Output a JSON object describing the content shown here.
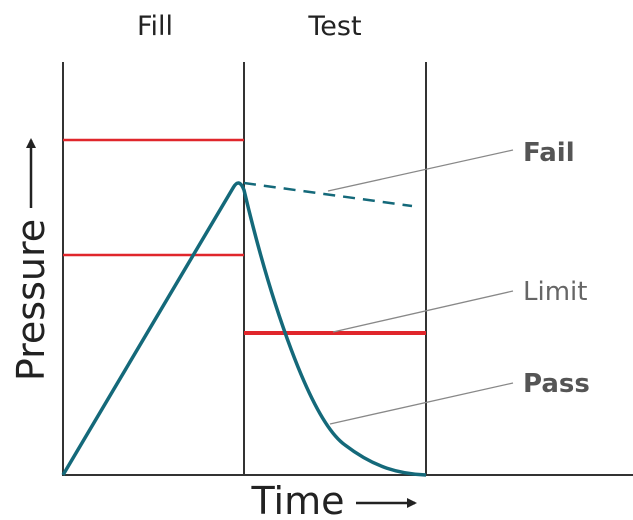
{
  "phases": [
    "Fill",
    "Test"
  ],
  "axes": {
    "y": "Pressure",
    "x": "Time"
  },
  "annotations": {
    "fail": "Fail",
    "limit": "Limit",
    "pass": "Pass"
  }
}
